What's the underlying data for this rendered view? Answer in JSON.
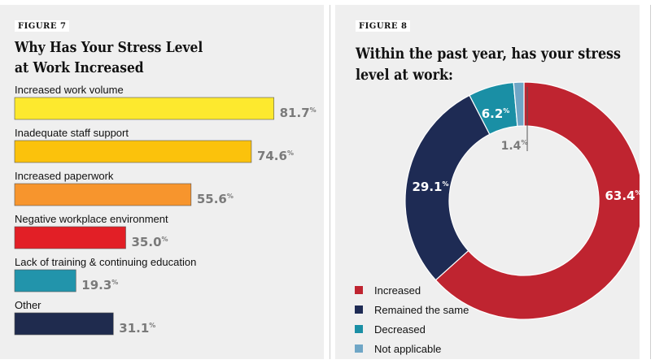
{
  "figure7": {
    "label": "FIGURE 7",
    "title_line1": "Why Has Your Stress Level",
    "title_line2": "at Work Increased"
  },
  "figure8": {
    "label": "FIGURE 8",
    "title_line1": "Within the past year, has your stress",
    "title_line2": "level at work:"
  },
  "chart_data": [
    {
      "type": "bar",
      "orientation": "horizontal",
      "title": "Why Has Your Stress Level at Work Increased",
      "categories": [
        "Increased work volume",
        "Inadequate staff support",
        "Increased paperwork",
        "Negative workplace environment",
        "Lack of training & continuing education",
        "Other"
      ],
      "values": [
        81.7,
        74.6,
        55.6,
        35.0,
        19.3,
        31.1
      ],
      "value_labels": [
        "81.7",
        "74.6",
        "55.6",
        "35.0",
        "19.3",
        "31.1"
      ],
      "unit": "%",
      "colors": [
        "#fde92e",
        "#fbc20c",
        "#f7952d",
        "#e21f26",
        "#2294ab",
        "#1f2b4e"
      ],
      "xlim": [
        0,
        100
      ]
    },
    {
      "type": "pie",
      "donut": true,
      "title": "Within the past year, has your stress level at work:",
      "categories": [
        "Increased",
        "Remained the same",
        "Decreased",
        "Not applicable"
      ],
      "values": [
        63.4,
        29.1,
        6.2,
        1.4
      ],
      "value_labels": [
        "63.4",
        "29.1",
        "6.2",
        "1.4"
      ],
      "unit": "%",
      "colors": [
        "#bf2430",
        "#1e2b54",
        "#1a8fa5",
        "#6fa6c6"
      ],
      "legend_position": "bottom-left"
    }
  ]
}
